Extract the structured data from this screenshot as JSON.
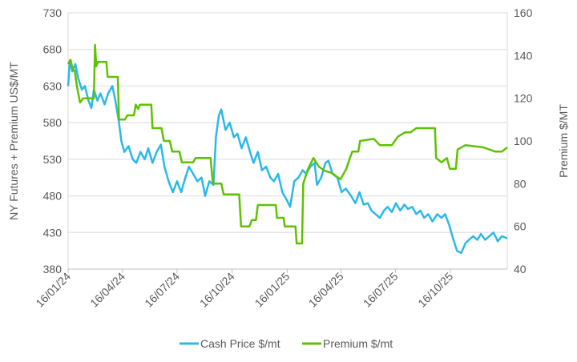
{
  "chart_data": {
    "type": "line",
    "ylabel": "NY Futures + Premium US$/MT",
    "y2label": "Premium $/MT",
    "ylim": [
      380,
      730
    ],
    "y2lim": [
      40,
      160
    ],
    "yticks": [
      "380",
      "430",
      "480",
      "530",
      "580",
      "630",
      "680",
      "730"
    ],
    "y2ticks": [
      "40",
      "60",
      "80",
      "100",
      "120",
      "140",
      "160"
    ],
    "xlim": [
      "2024-01-16",
      "2026-01-19"
    ],
    "xticks": [
      {
        "date": "2024-01-16",
        "label": "16/01/24"
      },
      {
        "date": "2024-04-16",
        "label": "16/04/24"
      },
      {
        "date": "2024-07-16",
        "label": "16/07/24"
      },
      {
        "date": "2024-10-16",
        "label": "16/10/24"
      },
      {
        "date": "2025-01-16",
        "label": "16/01/25"
      },
      {
        "date": "2025-04-16",
        "label": "16/04/25"
      },
      {
        "date": "2025-07-16",
        "label": "16/07/25"
      },
      {
        "date": "2025-10-16",
        "label": "16/10/25"
      }
    ],
    "grid": "horizontal",
    "legend": "bottom",
    "series": [
      {
        "name": "Cash Price $/mt",
        "axis": "left",
        "color": "#2bb8e9",
        "points": [
          [
            "2024-01-16",
            630
          ],
          [
            "2024-01-19",
            665
          ],
          [
            "2024-01-23",
            650
          ],
          [
            "2024-01-28",
            660
          ],
          [
            "2024-02-02",
            640
          ],
          [
            "2024-02-08",
            625
          ],
          [
            "2024-02-13",
            630
          ],
          [
            "2024-02-19",
            610
          ],
          [
            "2024-02-24",
            600
          ],
          [
            "2024-02-28",
            625
          ],
          [
            "2024-03-05",
            610
          ],
          [
            "2024-03-10",
            620
          ],
          [
            "2024-03-17",
            605
          ],
          [
            "2024-03-23",
            620
          ],
          [
            "2024-03-30",
            630
          ],
          [
            "2024-04-04",
            610
          ],
          [
            "2024-04-10",
            580
          ],
          [
            "2024-04-14",
            555
          ],
          [
            "2024-04-19",
            540
          ],
          [
            "2024-04-26",
            548
          ],
          [
            "2024-05-03",
            530
          ],
          [
            "2024-05-09",
            525
          ],
          [
            "2024-05-16",
            540
          ],
          [
            "2024-05-23",
            530
          ],
          [
            "2024-05-29",
            545
          ],
          [
            "2024-06-05",
            525
          ],
          [
            "2024-06-12",
            540
          ],
          [
            "2024-06-19",
            550
          ],
          [
            "2024-06-25",
            520
          ],
          [
            "2024-07-02",
            500
          ],
          [
            "2024-07-09",
            485
          ],
          [
            "2024-07-16",
            500
          ],
          [
            "2024-07-23",
            485
          ],
          [
            "2024-07-30",
            505
          ],
          [
            "2024-08-05",
            520
          ],
          [
            "2024-08-12",
            510
          ],
          [
            "2024-08-19",
            500
          ],
          [
            "2024-08-26",
            505
          ],
          [
            "2024-09-01",
            480
          ],
          [
            "2024-09-08",
            500
          ],
          [
            "2024-09-15",
            495
          ],
          [
            "2024-09-19",
            560
          ],
          [
            "2024-09-24",
            590
          ],
          [
            "2024-09-28",
            598
          ],
          [
            "2024-10-05",
            570
          ],
          [
            "2024-10-12",
            580
          ],
          [
            "2024-10-19",
            560
          ],
          [
            "2024-10-25",
            565
          ],
          [
            "2024-11-01",
            545
          ],
          [
            "2024-11-08",
            560
          ],
          [
            "2024-11-15",
            540
          ],
          [
            "2024-11-21",
            525
          ],
          [
            "2024-11-28",
            540
          ],
          [
            "2024-12-05",
            515
          ],
          [
            "2024-12-12",
            520
          ],
          [
            "2024-12-19",
            505
          ],
          [
            "2024-12-25",
            500
          ],
          [
            "2025-01-01",
            510
          ],
          [
            "2025-01-08",
            485
          ],
          [
            "2025-01-15",
            475
          ],
          [
            "2025-01-21",
            465
          ],
          [
            "2025-01-28",
            500
          ],
          [
            "2025-02-04",
            505
          ],
          [
            "2025-02-11",
            515
          ],
          [
            "2025-02-17",
            510
          ],
          [
            "2025-02-24",
            520
          ],
          [
            "2025-03-03",
            525
          ],
          [
            "2025-03-07",
            495
          ],
          [
            "2025-03-14",
            505
          ],
          [
            "2025-03-21",
            525
          ],
          [
            "2025-03-26",
            528
          ],
          [
            "2025-04-02",
            510
          ],
          [
            "2025-04-10",
            505
          ],
          [
            "2025-04-17",
            485
          ],
          [
            "2025-04-24",
            490
          ],
          [
            "2025-05-03",
            480
          ],
          [
            "2025-05-10",
            470
          ],
          [
            "2025-05-17",
            485
          ],
          [
            "2025-05-24",
            468
          ],
          [
            "2025-05-31",
            470
          ],
          [
            "2025-06-06",
            460
          ],
          [
            "2025-06-13",
            455
          ],
          [
            "2025-06-20",
            450
          ],
          [
            "2025-06-27",
            460
          ],
          [
            "2025-07-03",
            465
          ],
          [
            "2025-07-10",
            458
          ],
          [
            "2025-07-17",
            470
          ],
          [
            "2025-07-24",
            460
          ],
          [
            "2025-07-31",
            468
          ],
          [
            "2025-08-06",
            462
          ],
          [
            "2025-08-13",
            465
          ],
          [
            "2025-08-20",
            455
          ],
          [
            "2025-08-27",
            460
          ],
          [
            "2025-09-02",
            450
          ],
          [
            "2025-09-09",
            455
          ],
          [
            "2025-09-16",
            445
          ],
          [
            "2025-09-24",
            455
          ],
          [
            "2025-10-01",
            450
          ],
          [
            "2025-10-07",
            455
          ],
          [
            "2025-10-14",
            440
          ],
          [
            "2025-10-21",
            420
          ],
          [
            "2025-10-27",
            405
          ],
          [
            "2025-11-03",
            402
          ],
          [
            "2025-11-10",
            415
          ],
          [
            "2025-11-16",
            420
          ],
          [
            "2025-11-23",
            425
          ],
          [
            "2025-11-30",
            420
          ],
          [
            "2025-12-06",
            428
          ],
          [
            "2025-12-13",
            420
          ],
          [
            "2025-12-20",
            425
          ],
          [
            "2025-12-27",
            430
          ],
          [
            "2026-01-03",
            418
          ],
          [
            "2026-01-10",
            425
          ],
          [
            "2026-01-19",
            422
          ]
        ]
      },
      {
        "name": "Premium $/mt",
        "axis": "right",
        "color": "#5ec200",
        "points": [
          [
            "2024-01-16",
            136
          ],
          [
            "2024-01-20",
            138
          ],
          [
            "2024-01-24",
            133
          ],
          [
            "2024-01-27",
            133
          ],
          [
            "2024-01-31",
            125
          ],
          [
            "2024-02-05",
            118
          ],
          [
            "2024-02-10",
            120
          ],
          [
            "2024-02-28",
            120
          ],
          [
            "2024-03-01",
            145
          ],
          [
            "2024-03-03",
            135
          ],
          [
            "2024-03-06",
            137
          ],
          [
            "2024-03-20",
            137
          ],
          [
            "2024-03-22",
            130
          ],
          [
            "2024-04-08",
            130
          ],
          [
            "2024-04-10",
            110
          ],
          [
            "2024-04-20",
            110
          ],
          [
            "2024-04-24",
            112
          ],
          [
            "2024-05-05",
            112
          ],
          [
            "2024-05-08",
            117
          ],
          [
            "2024-05-12",
            115
          ],
          [
            "2024-05-15",
            117
          ],
          [
            "2024-06-03",
            117
          ],
          [
            "2024-06-05",
            106
          ],
          [
            "2024-06-20",
            106
          ],
          [
            "2024-06-24",
            100
          ],
          [
            "2024-07-04",
            100
          ],
          [
            "2024-07-08",
            95
          ],
          [
            "2024-07-20",
            95
          ],
          [
            "2024-07-24",
            90
          ],
          [
            "2024-08-12",
            90
          ],
          [
            "2024-08-16",
            92
          ],
          [
            "2024-09-10",
            92
          ],
          [
            "2024-09-14",
            80
          ],
          [
            "2024-09-28",
            80
          ],
          [
            "2024-10-02",
            75
          ],
          [
            "2024-10-28",
            75
          ],
          [
            "2024-10-31",
            60
          ],
          [
            "2024-11-14",
            60
          ],
          [
            "2024-11-18",
            63
          ],
          [
            "2024-11-25",
            63
          ],
          [
            "2024-11-28",
            70
          ],
          [
            "2024-12-28",
            70
          ],
          [
            "2024-12-30",
            64
          ],
          [
            "2025-01-10",
            64
          ],
          [
            "2025-01-12",
            60
          ],
          [
            "2025-01-30",
            60
          ],
          [
            "2025-02-01",
            52
          ],
          [
            "2025-02-10",
            52
          ],
          [
            "2025-02-12",
            80
          ],
          [
            "2025-02-20",
            87
          ],
          [
            "2025-03-01",
            92
          ],
          [
            "2025-03-10",
            88
          ],
          [
            "2025-03-20",
            86
          ],
          [
            "2025-04-01",
            85
          ],
          [
            "2025-04-15",
            82
          ],
          [
            "2025-04-25",
            87
          ],
          [
            "2025-05-01",
            92
          ],
          [
            "2025-05-05",
            95
          ],
          [
            "2025-05-15",
            95
          ],
          [
            "2025-05-18",
            100
          ],
          [
            "2025-06-10",
            101
          ],
          [
            "2025-06-20",
            98
          ],
          [
            "2025-07-10",
            98
          ],
          [
            "2025-07-20",
            102
          ],
          [
            "2025-08-01",
            104
          ],
          [
            "2025-08-10",
            104
          ],
          [
            "2025-08-20",
            106
          ],
          [
            "2025-09-20",
            106
          ],
          [
            "2025-09-22",
            92
          ],
          [
            "2025-10-01",
            90
          ],
          [
            "2025-10-10",
            92
          ],
          [
            "2025-10-15",
            87
          ],
          [
            "2025-10-25",
            87
          ],
          [
            "2025-10-28",
            96
          ],
          [
            "2025-11-10",
            98
          ],
          [
            "2025-12-10",
            97
          ],
          [
            "2025-12-30",
            95
          ],
          [
            "2026-01-10",
            95
          ],
          [
            "2026-01-19",
            97
          ]
        ]
      }
    ]
  }
}
